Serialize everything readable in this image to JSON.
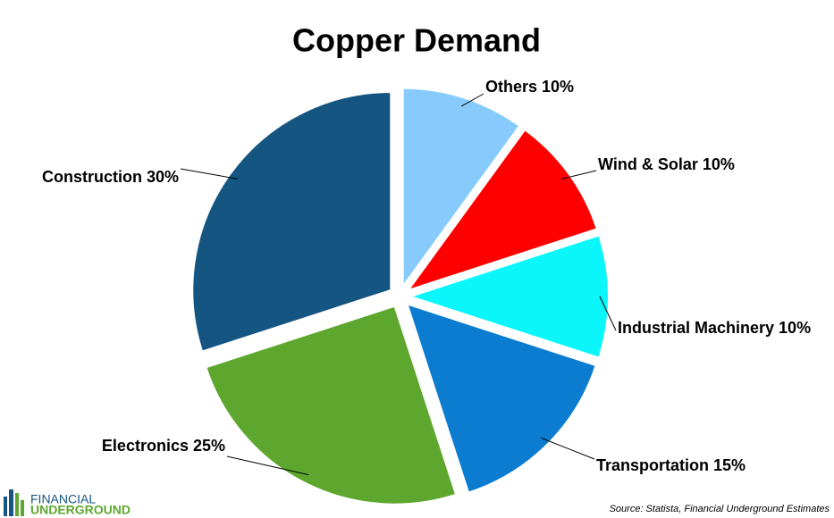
{
  "chart_data": {
    "type": "pie",
    "title": "Copper Demand",
    "categories": [
      "Others",
      "Wind & Solar",
      "Industrial Machinery",
      "Transportation",
      "Electronics",
      "Construction"
    ],
    "values": [
      10,
      10,
      10,
      15,
      25,
      30
    ],
    "value_labels": [
      "10%",
      "10%",
      "10%",
      "15%",
      "25%",
      "30%"
    ],
    "colors": [
      "#87cbfd",
      "#ff0000",
      "#0af6fb",
      "#0b7ccf",
      "#5ea72f",
      "#155582"
    ],
    "source": "Source: Statista, Financial Underground Estimates"
  },
  "logo": {
    "line1": "FINANCIAL",
    "line2": "UNDERGROUND"
  }
}
